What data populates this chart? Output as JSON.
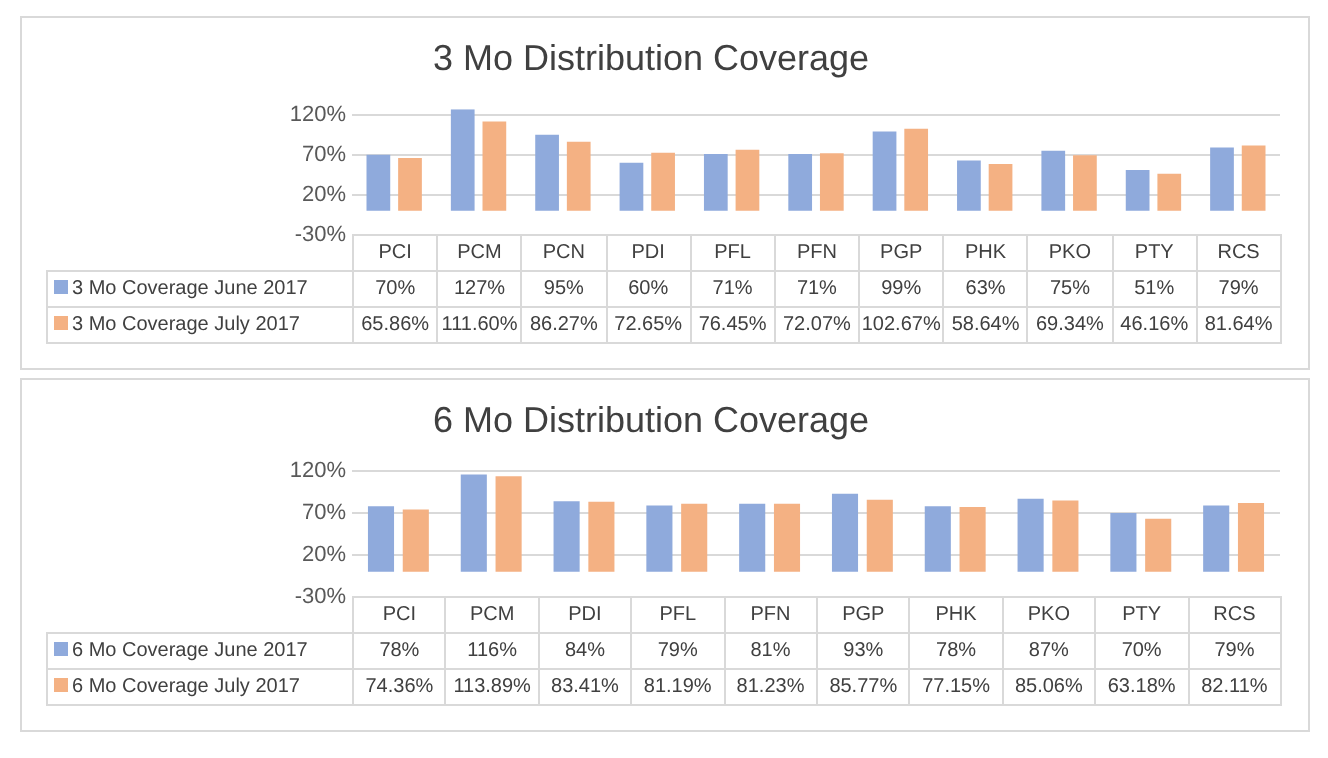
{
  "chart_data": [
    {
      "type": "bar",
      "title": "3 Mo Distribution Coverage",
      "categories": [
        "PCI",
        "PCM",
        "PCN",
        "PDI",
        "PFL",
        "PFN",
        "PGP",
        "PHK",
        "PKO",
        "PTY",
        "RCS"
      ],
      "series": [
        {
          "name": "3 Mo Coverage June 2017",
          "color": "#8faadc",
          "values": [
            70,
            127,
            95,
            60,
            71,
            71,
            99,
            63,
            75,
            51,
            79
          ],
          "value_labels": [
            "70%",
            "127%",
            "95%",
            "60%",
            "71%",
            "71%",
            "99%",
            "63%",
            "75%",
            "51%",
            "79%"
          ]
        },
        {
          "name": "3 Mo Coverage July 2017",
          "color": "#f4b183",
          "values": [
            65.86,
            111.6,
            86.27,
            72.65,
            76.45,
            72.07,
            102.67,
            58.64,
            69.34,
            46.16,
            81.64
          ],
          "value_labels": [
            "65.86%",
            "111.60%",
            "86.27%",
            "72.65%",
            "76.45%",
            "72.07%",
            "102.67%",
            "58.64%",
            "69.34%",
            "46.16%",
            "81.64%"
          ]
        }
      ],
      "ylim": [
        -30,
        127
      ],
      "yticks": [
        {
          "value": -30,
          "label": "-30%"
        },
        {
          "value": 20,
          "label": "20%"
        },
        {
          "value": 70,
          "label": "70%"
        },
        {
          "value": 120,
          "label": "120%"
        }
      ],
      "grid": "y",
      "legend": "bottom"
    },
    {
      "type": "bar",
      "title": "6 Mo Distribution Coverage",
      "categories": [
        "PCI",
        "PCM",
        "PDI",
        "PFL",
        "PFN",
        "PGP",
        "PHK",
        "PKO",
        "PTY",
        "RCS"
      ],
      "series": [
        {
          "name": "6 Mo Coverage June 2017",
          "color": "#8faadc",
          "values": [
            78,
            116,
            84,
            79,
            81,
            93,
            78,
            87,
            70,
            79
          ],
          "value_labels": [
            "78%",
            "116%",
            "84%",
            "79%",
            "81%",
            "93%",
            "78%",
            "87%",
            "70%",
            "79%"
          ]
        },
        {
          "name": "6 Mo Coverage July 2017",
          "color": "#f4b183",
          "values": [
            74.36,
            113.89,
            83.41,
            81.19,
            81.23,
            85.77,
            77.15,
            85.06,
            63.18,
            82.11
          ],
          "value_labels": [
            "74.36%",
            "113.89%",
            "83.41%",
            "81.19%",
            "81.23%",
            "85.77%",
            "77.15%",
            "85.06%",
            "63.18%",
            "82.11%"
          ]
        }
      ],
      "ylim": [
        -30,
        120
      ],
      "yticks": [
        {
          "value": -30,
          "label": "-30%"
        },
        {
          "value": 20,
          "label": "20%"
        },
        {
          "value": 70,
          "label": "70%"
        },
        {
          "value": 120,
          "label": "120%"
        }
      ],
      "grid": "y",
      "legend": "bottom"
    }
  ]
}
